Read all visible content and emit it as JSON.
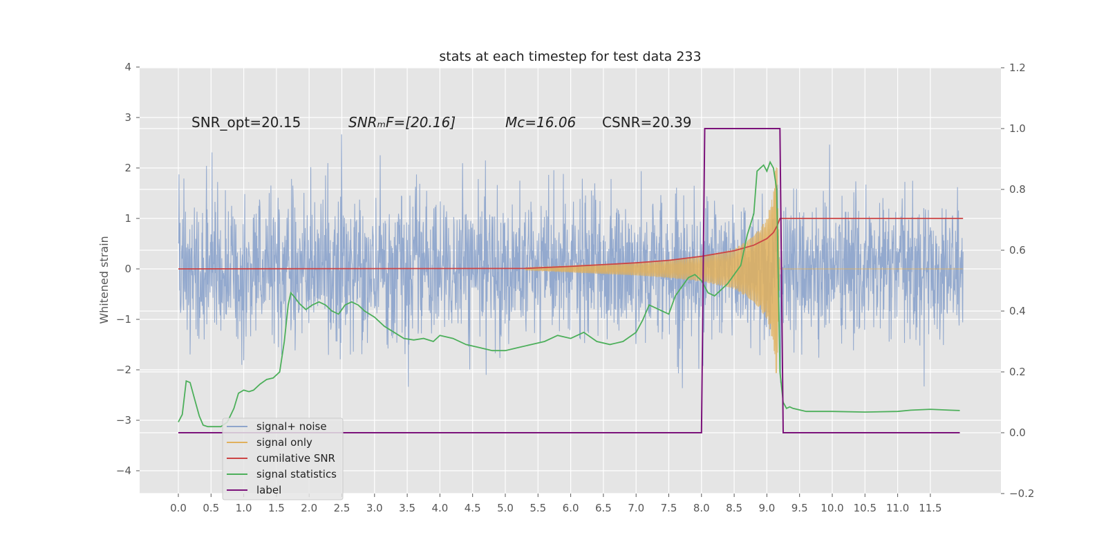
{
  "chart_data": {
    "type": "line",
    "title": "stats at each timestep for test data 233",
    "ylabel": "Whitened strain",
    "xlabel": "",
    "xlim": [
      -0.6,
      12.5
    ],
    "ylim": [
      -4.45,
      4.0
    ],
    "y2lim": [
      -0.2,
      1.2
    ],
    "grid": true,
    "legend_placement": "lower-left",
    "x_ticks": [
      "0.0",
      "0.5",
      "1.0",
      "1.5",
      "2.0",
      "2.5",
      "3.0",
      "3.5",
      "4.0",
      "4.5",
      "5.0",
      "5.5",
      "6.0",
      "6.5",
      "7.0",
      "7.5",
      "8.0",
      "8.5",
      "9.0",
      "9.5",
      "10.0",
      "10.5",
      "11.0",
      "11.5"
    ],
    "y_ticks": [
      "4",
      "3",
      "2",
      "1",
      "0",
      "−1",
      "−2",
      "−3",
      "−4"
    ],
    "y2_ticks": [
      "1.2",
      "1.0",
      "0.8",
      "0.6",
      "0.4",
      "0.2",
      "0.0",
      "−0.2"
    ],
    "annotations": [
      {
        "id": "snr_opt",
        "text": "SNR_opt=20.15"
      },
      {
        "id": "snr_mf",
        "text": "SNRₘF=[20.16]"
      },
      {
        "id": "mc",
        "text": "Mᴄ=16.06"
      },
      {
        "id": "csnr",
        "text": "CSNR=20.39"
      }
    ],
    "series": [
      {
        "name": "signal+ noise",
        "color": "#8ea5cc",
        "axis": "left",
        "description_noise_std": 0.7,
        "x_range": [
          0,
          12.0
        ]
      },
      {
        "name": "signal only",
        "color": "#e0b05c",
        "axis": "left",
        "x": [
          5.3,
          6.0,
          7.0,
          7.5,
          8.0,
          8.5,
          8.8,
          9.0,
          9.1,
          9.15,
          9.2
        ],
        "amp": [
          0.02,
          0.07,
          0.13,
          0.18,
          0.25,
          0.4,
          0.65,
          1.0,
          1.5,
          2.3,
          0.0
        ]
      },
      {
        "name": "cumilative SNR",
        "color": "#cc4444",
        "axis": "left",
        "x": [
          0.0,
          5.3,
          6.0,
          7.0,
          7.5,
          8.0,
          8.5,
          8.8,
          9.0,
          9.1,
          9.16,
          9.2,
          12.0
        ],
        "y": [
          0.0,
          0.01,
          0.05,
          0.12,
          0.17,
          0.25,
          0.36,
          0.47,
          0.6,
          0.72,
          0.86,
          1.0,
          1.0
        ]
      },
      {
        "name": "signal statistics",
        "color": "#4caf5a",
        "axis": "right",
        "x": [
          0.0,
          0.06,
          0.12,
          0.18,
          0.25,
          0.32,
          0.38,
          0.45,
          0.55,
          0.65,
          0.75,
          0.85,
          0.92,
          1.0,
          1.08,
          1.15,
          1.25,
          1.35,
          1.45,
          1.55,
          1.62,
          1.68,
          1.72,
          1.78,
          1.85,
          1.95,
          2.05,
          2.15,
          2.25,
          2.35,
          2.45,
          2.55,
          2.65,
          2.75,
          2.85,
          3.0,
          3.15,
          3.3,
          3.45,
          3.6,
          3.75,
          3.9,
          4.0,
          4.2,
          4.4,
          4.6,
          4.8,
          5.0,
          5.2,
          5.4,
          5.6,
          5.8,
          6.0,
          6.2,
          6.4,
          6.6,
          6.8,
          7.0,
          7.1,
          7.2,
          7.3,
          7.4,
          7.5,
          7.6,
          7.7,
          7.8,
          7.9,
          8.0,
          8.1,
          8.2,
          8.3,
          8.4,
          8.5,
          8.6,
          8.7,
          8.8,
          8.85,
          8.9,
          8.95,
          9.0,
          9.05,
          9.1,
          9.15,
          9.2,
          9.25,
          9.3,
          9.35,
          9.4,
          9.5,
          9.6,
          9.8,
          10.0,
          10.5,
          11.0,
          11.2,
          11.5,
          11.8,
          11.95
        ],
        "y": [
          0.035,
          0.06,
          0.17,
          0.165,
          0.11,
          0.055,
          0.025,
          0.02,
          0.02,
          0.02,
          0.035,
          0.08,
          0.13,
          0.14,
          0.135,
          0.14,
          0.16,
          0.175,
          0.18,
          0.2,
          0.3,
          0.42,
          0.46,
          0.445,
          0.425,
          0.405,
          0.42,
          0.43,
          0.42,
          0.4,
          0.39,
          0.42,
          0.43,
          0.42,
          0.4,
          0.38,
          0.35,
          0.33,
          0.31,
          0.305,
          0.31,
          0.3,
          0.32,
          0.31,
          0.29,
          0.28,
          0.27,
          0.27,
          0.28,
          0.29,
          0.3,
          0.32,
          0.31,
          0.33,
          0.3,
          0.29,
          0.3,
          0.33,
          0.37,
          0.42,
          0.41,
          0.4,
          0.39,
          0.45,
          0.48,
          0.51,
          0.52,
          0.5,
          0.46,
          0.45,
          0.47,
          0.49,
          0.52,
          0.55,
          0.65,
          0.72,
          0.86,
          0.87,
          0.88,
          0.86,
          0.89,
          0.87,
          0.8,
          0.2,
          0.1,
          0.08,
          0.085,
          0.08,
          0.075,
          0.07,
          0.07,
          0.07,
          0.068,
          0.07,
          0.074,
          0.077,
          0.074,
          0.073
        ]
      },
      {
        "name": "label",
        "color": "#7b117a",
        "axis": "right",
        "x": [
          0.0,
          8.0,
          8.05,
          9.2,
          9.25,
          11.95
        ],
        "y": [
          0.0,
          0.0,
          1.0,
          1.0,
          0.0,
          0.0
        ]
      }
    ],
    "legend": [
      {
        "label": "signal+ noise",
        "color": "#8ea5cc"
      },
      {
        "label": "signal only",
        "color": "#e0b05c"
      },
      {
        "label": "cumilative SNR",
        "color": "#cc4444"
      },
      {
        "label": "signal statistics",
        "color": "#4caf5a"
      },
      {
        "label": "label",
        "color": "#7b117a"
      }
    ]
  }
}
